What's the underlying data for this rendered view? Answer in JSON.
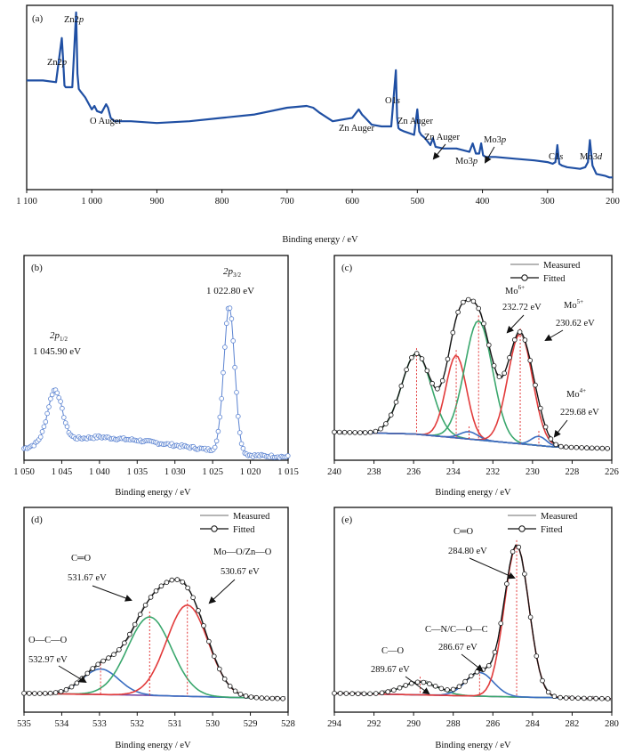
{
  "chart_data": [
    {
      "id": "a",
      "type": "line",
      "panel_label": "(a)",
      "xlabel": "Binding energy / eV",
      "xlim": [
        1100,
        200
      ],
      "ylim": [
        0,
        100
      ],
      "xticks": [
        1100,
        1000,
        900,
        800,
        700,
        600,
        500,
        400,
        300,
        200
      ],
      "xtick_labels": [
        "1 100",
        "1 000",
        "900",
        "800",
        "700",
        "600",
        "500",
        "400",
        "300",
        "200"
      ],
      "line_color": "#1f4fa3",
      "series": [
        {
          "x": [
            1100,
            1075,
            1055,
            1046,
            1044,
            1042,
            1040,
            1030,
            1024,
            1022,
            1020,
            1018,
            1010,
            1000,
            996,
            992,
            985,
            978,
            975,
            971,
            965,
            940,
            900,
            850,
            800,
            750,
            700,
            670,
            660,
            650,
            630,
            600,
            590,
            585,
            580,
            575,
            570,
            555,
            540,
            533,
            531,
            529,
            526,
            520,
            505,
            500,
            497,
            494,
            488,
            480,
            476,
            472,
            460,
            440,
            420,
            415,
            410,
            405,
            402,
            399,
            395,
            380,
            350,
            320,
            300,
            292,
            288,
            285,
            282,
            278,
            270,
            250,
            242,
            238,
            235,
            231,
            225,
            212,
            205,
            200
          ],
          "y": [
            60,
            60,
            59,
            85,
            72,
            57,
            56,
            56,
            100,
            64,
            55,
            54,
            50,
            43,
            45,
            42,
            41,
            46,
            44,
            38,
            36,
            36,
            35,
            36,
            38,
            40,
            44,
            45,
            44,
            41,
            36,
            38,
            43,
            40,
            38,
            36,
            34,
            33,
            33,
            66,
            38,
            32,
            31,
            30,
            28,
            43,
            30,
            28,
            26,
            22,
            26,
            21,
            20,
            20,
            18,
            23,
            17,
            17,
            23,
            16,
            15,
            15,
            14,
            13,
            12,
            11,
            12,
            22,
            11,
            10,
            9,
            8,
            9,
            12,
            25,
            10,
            5,
            4,
            3,
            3
          ]
        }
      ],
      "annotations": [
        {
          "text": "Zn2p",
          "x": 1044,
          "y": 85
        },
        {
          "text": "Zn2p",
          "x": 1022,
          "y": 100
        },
        {
          "text": "O Auger",
          "x": 975,
          "y": 45
        },
        {
          "text": "Zn Auger",
          "x": 585,
          "y": 43
        },
        {
          "text": "O1s",
          "x": 531,
          "y": 66
        },
        {
          "text": "Zn Auger",
          "x": 500,
          "y": 43
        },
        {
          "text": "Zn Auger",
          "x": 476,
          "y": 26
        },
        {
          "text": "Mo3p",
          "x": 415,
          "y": 23
        },
        {
          "text": "Mo3p",
          "x": 399,
          "y": 23
        },
        {
          "text": "C1s",
          "x": 285,
          "y": 22
        },
        {
          "text": "Mo3d",
          "x": 235,
          "y": 25
        }
      ]
    },
    {
      "id": "b",
      "type": "scatter",
      "panel_label": "(b)",
      "xlabel": "Binding energy / eV",
      "xlim": [
        1050,
        1015
      ],
      "ylim": [
        0,
        100
      ],
      "xticks": [
        1050,
        1045,
        1040,
        1035,
        1030,
        1025,
        1020,
        1015
      ],
      "xtick_labels": [
        "1 050",
        "1 045",
        "1 040",
        "1 035",
        "1 030",
        "1 025",
        "1 020",
        "1 015"
      ],
      "line_color": "#5b83d1",
      "baseline": [
        [
          1050,
          7
        ],
        [
          1048,
          10
        ],
        [
          1043,
          13
        ],
        [
          1040,
          14
        ],
        [
          1035,
          12
        ],
        [
          1030,
          9
        ],
        [
          1025,
          6
        ],
        [
          1020,
          3
        ],
        [
          1015,
          2
        ]
      ],
      "peaks": [
        {
          "center": 1045.9,
          "height": 31,
          "width": 0.95,
          "label": "1 045.90 eV",
          "name_main": "2p",
          "name_sub": "1/2"
        },
        {
          "center": 1022.8,
          "height": 88,
          "width": 0.72,
          "label": "1 022.80 eV",
          "name_main": "2p",
          "name_sub": "3/2"
        }
      ],
      "step": 0.22
    },
    {
      "id": "c",
      "type": "line",
      "panel_label": "(c)",
      "xlabel": "Binding energy / eV",
      "xlim": [
        240,
        226
      ],
      "ylim": [
        0,
        100
      ],
      "xticks": [
        240,
        238,
        236,
        234,
        232,
        230,
        228,
        226
      ],
      "xtick_labels": [
        "240",
        "238",
        "236",
        "234",
        "232",
        "230",
        "228",
        "226"
      ],
      "legend": {
        "position": "top-right",
        "items": [
          "Measured",
          "Fitted"
        ]
      },
      "baseline": [
        [
          240,
          10
        ],
        [
          236,
          9
        ],
        [
          232,
          5
        ],
        [
          229,
          2
        ],
        [
          226,
          1
        ]
      ],
      "components": [
        {
          "center": 235.85,
          "height": 44,
          "width": 0.75,
          "color": "#3aa76d"
        },
        {
          "center": 233.85,
          "height": 45,
          "width": 0.52,
          "color": "#e23b3b"
        },
        {
          "center": 232.72,
          "height": 65,
          "width": 0.7,
          "color": "#3aa76d"
        },
        {
          "center": 233.2,
          "height": 4,
          "width": 0.45,
          "color": "#3b6fc2"
        },
        {
          "center": 230.62,
          "height": 60,
          "width": 0.62,
          "color": "#e23b3b"
        },
        {
          "center": 229.68,
          "height": 5,
          "width": 0.38,
          "color": "#3b6fc2"
        }
      ],
      "dashed_markers": [
        235.85,
        233.85,
        232.72,
        233.2,
        230.62,
        229.68
      ],
      "labels": [
        {
          "species": "Mo",
          "charge": "6+",
          "energy": "232.72 eV"
        },
        {
          "species": "Mo",
          "charge": "5+",
          "energy": "230.62 eV"
        },
        {
          "species": "Mo",
          "charge": "4+",
          "energy": "229.68 eV"
        }
      ],
      "step": 0.13
    },
    {
      "id": "d",
      "type": "line",
      "panel_label": "(d)",
      "xlabel": "Binding energy / eV",
      "xlim": [
        535,
        528
      ],
      "ylim": [
        0,
        100
      ],
      "xticks": [
        535,
        534,
        533,
        532,
        531,
        530,
        529,
        528
      ],
      "xtick_labels": [
        "535",
        "534",
        "533",
        "532",
        "531",
        "530",
        "529",
        "528"
      ],
      "legend": {
        "position": "top-right",
        "items": [
          "Measured",
          "Fitted"
        ]
      },
      "baseline": [
        [
          535,
          4
        ],
        [
          532,
          3
        ],
        [
          528,
          1
        ]
      ],
      "components": [
        {
          "center": 532.97,
          "height": 14,
          "width": 0.48,
          "color": "#3b6fc2"
        },
        {
          "center": 531.67,
          "height": 43,
          "width": 0.58,
          "color": "#3aa76d"
        },
        {
          "center": 530.67,
          "height": 50,
          "width": 0.55,
          "color": "#e23b3b"
        }
      ],
      "dashed_markers": [
        532.97,
        531.67,
        530.67
      ],
      "labels": [
        {
          "name": "O—C—O",
          "energy": "532.97 eV"
        },
        {
          "name": "C═O",
          "energy": "531.67 eV"
        },
        {
          "name": "Mo—O/Zn—O",
          "energy": "530.67 eV"
        }
      ],
      "step": 0.07
    },
    {
      "id": "e",
      "type": "line",
      "panel_label": "(e)",
      "xlabel": "Binding energy / eV",
      "xlim": [
        294,
        280
      ],
      "ylim": [
        0,
        100
      ],
      "xticks": [
        294,
        292,
        290,
        288,
        286,
        284,
        282,
        280
      ],
      "xtick_labels": [
        "294",
        "292",
        "290",
        "288",
        "286",
        "284",
        "282",
        "280"
      ],
      "legend": {
        "position": "top-right",
        "items": [
          "Measured",
          "Fitted"
        ]
      },
      "baseline": [
        [
          294,
          4
        ],
        [
          289,
          3
        ],
        [
          285,
          2
        ],
        [
          280,
          1
        ]
      ],
      "components": [
        {
          "center": 289.67,
          "height": 7,
          "width": 0.9,
          "color": "#3aa76d"
        },
        {
          "center": 286.67,
          "height": 13,
          "width": 0.7,
          "color": "#3b6fc2"
        },
        {
          "center": 284.8,
          "height": 83,
          "width": 0.62,
          "color": "#e23b3b"
        }
      ],
      "dashed_markers": [
        289.67,
        286.67,
        284.8
      ],
      "labels": [
        {
          "name": "C—O",
          "energy": "289.67 eV"
        },
        {
          "name": "C—N/C—O—C",
          "energy": "286.67 eV"
        },
        {
          "name": "C═O",
          "energy": "284.80 eV"
        }
      ],
      "step": 0.15
    }
  ]
}
